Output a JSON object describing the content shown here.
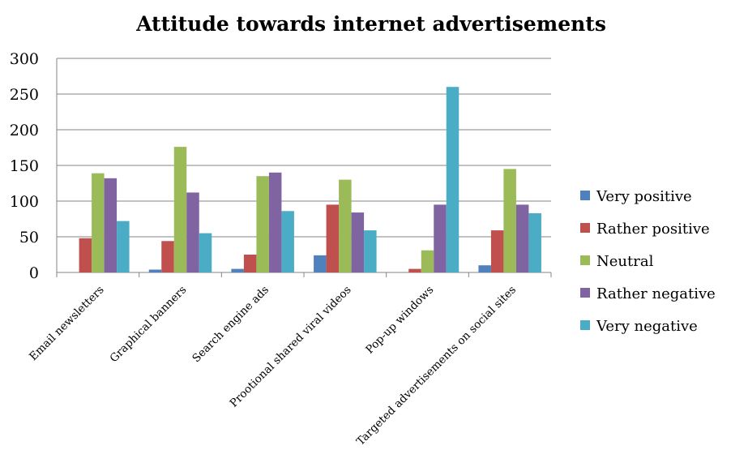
{
  "chart_data": {
    "type": "bar",
    "title": "Attitude towards internet advertisements",
    "xlabel": "",
    "ylabel": "",
    "ylim": [
      0,
      300
    ],
    "yticks": [
      0,
      50,
      100,
      150,
      200,
      250,
      300
    ],
    "grid": true,
    "legend_position": "right",
    "categories": [
      "Email newsletters",
      "Graphical banners",
      "Search engine ads",
      "Prootional shared viral videos",
      "Pop-up windows",
      "Targeted advertisements on social sites"
    ],
    "series": [
      {
        "name": "Very positive",
        "color": "#4f81bd",
        "values": [
          0,
          4,
          5,
          24,
          0,
          10
        ]
      },
      {
        "name": "Rather positive",
        "color": "#c0504d",
        "values": [
          48,
          44,
          25,
          95,
          5,
          59
        ]
      },
      {
        "name": "Neutral",
        "color": "#9bbb59",
        "values": [
          139,
          176,
          135,
          130,
          31,
          145
        ]
      },
      {
        "name": "Rather negative",
        "color": "#8064a2",
        "values": [
          132,
          112,
          140,
          84,
          95,
          95
        ]
      },
      {
        "name": "Very negative",
        "color": "#4bacc6",
        "values": [
          72,
          55,
          86,
          59,
          260,
          83
        ]
      }
    ]
  }
}
